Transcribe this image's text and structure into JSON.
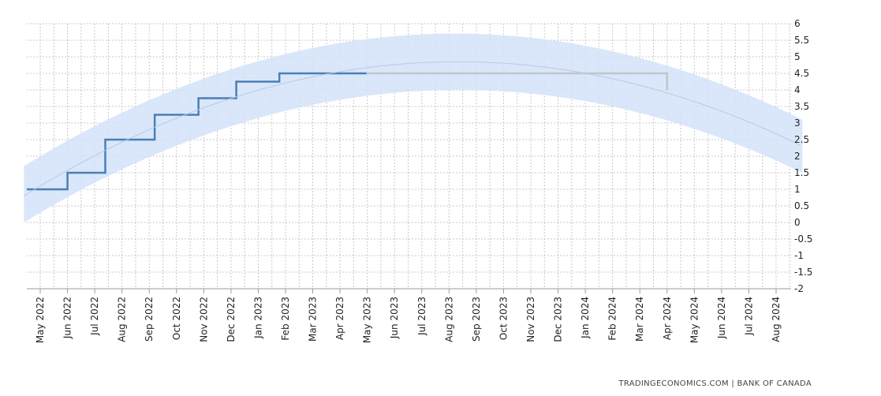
{
  "chart_data": {
    "type": "line",
    "title": "",
    "xlabel": "",
    "ylabel": "",
    "ylim": [
      -2,
      6
    ],
    "y_ticks": [
      "6",
      "5.5",
      "5",
      "4.5",
      "4",
      "3.5",
      "3",
      "2.5",
      "2",
      "1.5",
      "1",
      "0.5",
      "0",
      "-0.5",
      "-1",
      "-1.5",
      "-2"
    ],
    "x_ticks": [
      "May 2022",
      "Jun 2022",
      "Jul 2022",
      "Aug 2022",
      "Sep 2022",
      "Oct 2022",
      "Nov 2022",
      "Dec 2022",
      "Jan 2023",
      "Feb 2023",
      "Mar 2023",
      "Apr 2023",
      "May 2023",
      "Jun 2023",
      "Jul 2023",
      "Aug 2023",
      "Sep 2023",
      "Oct 2023",
      "Nov 2023",
      "Dec 2023",
      "Jan 2024",
      "Feb 2024",
      "Mar 2024",
      "Apr 2024",
      "May 2024",
      "Jun 2024",
      "Jul 2024",
      "Aug 2024"
    ],
    "grid": true,
    "series": [
      {
        "role": "actual",
        "style": "step",
        "x": [
          "2022-04-13",
          "2022-06-01",
          "2022-07-13",
          "2022-09-07",
          "2022-10-26",
          "2022-12-07",
          "2023-01-25",
          "2023-04-30"
        ],
        "y": [
          1.0,
          1.5,
          2.5,
          3.25,
          3.75,
          4.25,
          4.5,
          4.5
        ]
      },
      {
        "role": "forecast",
        "style": "step",
        "x": [
          "2023-04-30",
          "2024-04-01",
          "2024-04-01"
        ],
        "y": [
          4.5,
          4.5,
          4.0
        ]
      },
      {
        "role": "trend",
        "style": "smooth",
        "x": [
          "2022-04-13",
          "2023-08-15",
          "2024-08-31"
        ],
        "y": [
          0.8,
          4.85,
          2.3
        ]
      }
    ],
    "bands": [
      {
        "role": "confidence",
        "x": [
          "2022-04-13",
          "2023-08-15",
          "2024-08-31"
        ],
        "upper": [
          1.7,
          5.7,
          3.1
        ],
        "lower": [
          0.0,
          4.0,
          1.5
        ]
      }
    ],
    "colors": {
      "actual": "#4a7fb5",
      "forecast": "#c0c6cc",
      "band": "#d4e3f9",
      "trend": "#b7c9e6"
    }
  },
  "source": "TRADINGECONOMICS.COM  |  BANK OF CANADA"
}
